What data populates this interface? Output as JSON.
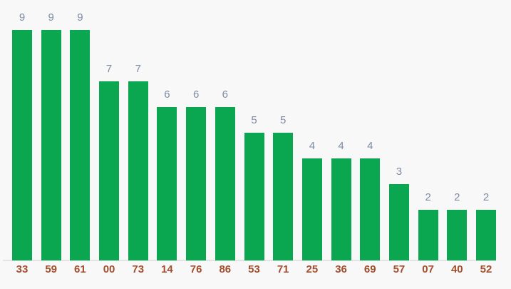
{
  "chart_data": {
    "type": "bar",
    "categories": [
      "33",
      "59",
      "61",
      "00",
      "73",
      "14",
      "76",
      "86",
      "53",
      "71",
      "25",
      "36",
      "69",
      "57",
      "07",
      "40",
      "52"
    ],
    "values": [
      9,
      9,
      9,
      7,
      7,
      6,
      6,
      6,
      5,
      5,
      4,
      4,
      4,
      3,
      2,
      2,
      2
    ],
    "title": "",
    "xlabel": "",
    "ylabel": "",
    "ylim": [
      0,
      9
    ],
    "grid": false,
    "legend": false,
    "value_labels_shown": true,
    "colors": {
      "bar": "#0aa750",
      "value_label": "#7d8ca3",
      "category_label": "#a14e2d",
      "axis_line": "#e4e4e4",
      "background": "#f8f8f8"
    }
  }
}
